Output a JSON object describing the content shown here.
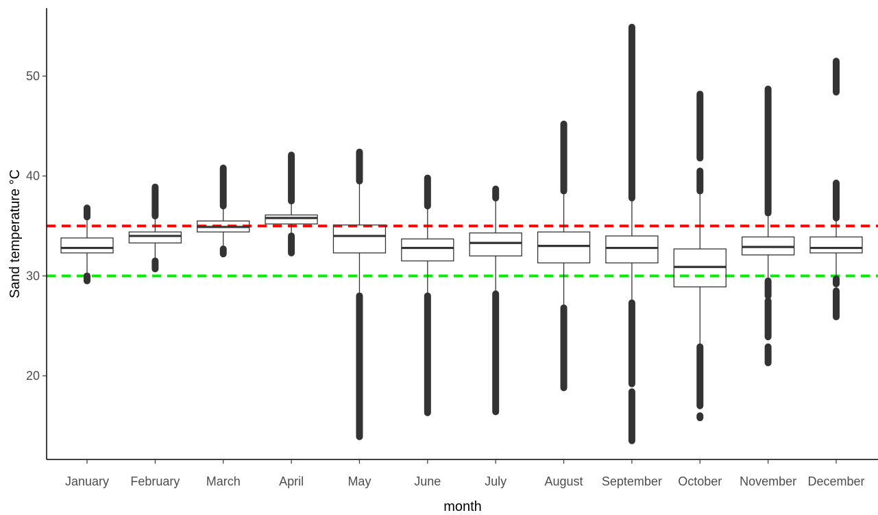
{
  "chart_data": {
    "type": "boxplot",
    "xlabel": "month",
    "ylabel": "Sand temperature °C",
    "ylim": [
      12.5,
      57
    ],
    "yticks": [
      20,
      30,
      40,
      50
    ],
    "categories": [
      "January",
      "February",
      "March",
      "April",
      "May",
      "June",
      "July",
      "August",
      "September",
      "October",
      "November",
      "December"
    ],
    "boxes": [
      {
        "q1": 32.3,
        "median": 32.8,
        "q3": 33.8,
        "whisker_low": 30.0,
        "whisker_high": 35.9,
        "outlier_ranges": [
          [
            29.5,
            30.0
          ],
          [
            35.9,
            36.8
          ]
        ]
      },
      {
        "q1": 33.3,
        "median": 34.0,
        "q3": 34.4,
        "whisker_low": 31.5,
        "whisker_high": 36.0,
        "outlier_ranges": [
          [
            30.7,
            31.5
          ],
          [
            36.0,
            38.9
          ]
        ]
      },
      {
        "q1": 34.4,
        "median": 34.9,
        "q3": 35.5,
        "whisker_low": 32.7,
        "whisker_high": 37.0,
        "outlier_ranges": [
          [
            32.2,
            32.7
          ],
          [
            37.0,
            40.8
          ]
        ]
      },
      {
        "q1": 35.2,
        "median": 35.8,
        "q3": 36.1,
        "whisker_low": 34.0,
        "whisker_high": 37.5,
        "outlier_ranges": [
          [
            32.3,
            34.0
          ],
          [
            37.5,
            42.1
          ]
        ]
      },
      {
        "q1": 32.3,
        "median": 34.0,
        "q3": 35.1,
        "whisker_low": 28.0,
        "whisker_high": 39.5,
        "outlier_ranges": [
          [
            13.9,
            28.0
          ],
          [
            39.5,
            42.4
          ]
        ]
      },
      {
        "q1": 31.5,
        "median": 32.8,
        "q3": 33.7,
        "whisker_low": 28.0,
        "whisker_high": 37.0,
        "outlier_ranges": [
          [
            16.3,
            28.0
          ],
          [
            37.0,
            39.8
          ]
        ]
      },
      {
        "q1": 32.0,
        "median": 33.3,
        "q3": 34.3,
        "whisker_low": 28.2,
        "whisker_high": 37.8,
        "outlier_ranges": [
          [
            16.4,
            28.2
          ],
          [
            37.8,
            38.7
          ]
        ]
      },
      {
        "q1": 31.3,
        "median": 33.0,
        "q3": 34.4,
        "whisker_low": 26.8,
        "whisker_high": 38.5,
        "outlier_ranges": [
          [
            18.8,
            26.8
          ],
          [
            38.5,
            45.2
          ]
        ]
      },
      {
        "q1": 31.3,
        "median": 32.8,
        "q3": 34.0,
        "whisker_low": 27.3,
        "whisker_high": 37.8,
        "outlier_ranges": [
          [
            13.5,
            18.4
          ],
          [
            19.2,
            27.3
          ],
          [
            37.8,
            54.9
          ]
        ]
      },
      {
        "q1": 28.9,
        "median": 30.9,
        "q3": 32.7,
        "whisker_low": 22.9,
        "whisker_high": 38.5,
        "outlier_ranges": [
          [
            15.8,
            16.0
          ],
          [
            17.0,
            22.9
          ],
          [
            38.5,
            40.5
          ],
          [
            41.8,
            48.2
          ]
        ]
      },
      {
        "q1": 32.1,
        "median": 32.9,
        "q3": 33.9,
        "whisker_low": 29.5,
        "whisker_high": 36.3,
        "outlier_ranges": [
          [
            21.3,
            22.9
          ],
          [
            23.9,
            27.5
          ],
          [
            28.0,
            29.5
          ],
          [
            36.3,
            48.7
          ]
        ]
      },
      {
        "q1": 32.3,
        "median": 32.8,
        "q3": 33.9,
        "whisker_low": 29.7,
        "whisker_high": 35.8,
        "outlier_ranges": [
          [
            25.9,
            28.5
          ],
          [
            29.2,
            29.7
          ],
          [
            35.8,
            39.3
          ],
          [
            48.4,
            51.5
          ]
        ]
      }
    ],
    "reference_lines": [
      {
        "y": 35,
        "color": "#ff0000",
        "style": "dashed"
      },
      {
        "y": 30,
        "color": "#00ee00",
        "style": "dashed"
      }
    ],
    "grid": false,
    "legend": "none"
  }
}
